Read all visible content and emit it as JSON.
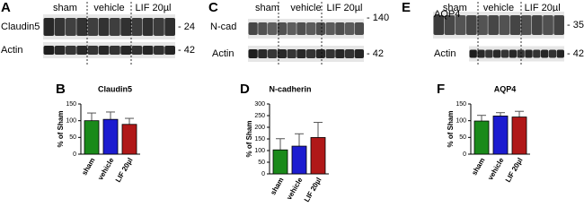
{
  "blots": [
    {
      "label": "A",
      "groups": [
        "sham",
        "vehicle",
        "LIF 20µl"
      ],
      "rows": [
        {
          "name": "Claudin5",
          "marker": "- 24"
        },
        {
          "name": "Actin",
          "marker": "- 42"
        }
      ]
    },
    {
      "label": "C",
      "groups": [
        "sham",
        "vehicle",
        "LIF 20µl"
      ],
      "rows": [
        {
          "name": "N-cad",
          "marker": "- 140"
        },
        {
          "name": "Actin",
          "marker": "- 42"
        }
      ]
    },
    {
      "label": "E",
      "groups": [
        "sham",
        "vehicle",
        "LIF 20µl"
      ],
      "rows": [
        {
          "name": "AQP4",
          "marker": "- 35"
        },
        {
          "name": "Actin",
          "marker": "- 42"
        }
      ]
    }
  ],
  "chart_data": [
    {
      "type": "bar",
      "panel": "B",
      "title": "Claudin5",
      "y_label": "% of Sham",
      "categories": [
        "sham",
        "vehicle",
        "LIF 20µl"
      ],
      "values": [
        100,
        104,
        89
      ],
      "errors": [
        23,
        22,
        18
      ],
      "colors": [
        "#1a8a1a",
        "#1c1cd0",
        "#b01818"
      ],
      "ylim": [
        0,
        150
      ],
      "yticks": [
        0,
        50,
        100,
        150
      ]
    },
    {
      "type": "bar",
      "panel": "D",
      "title": "N-cadherin",
      "y_label": "% of Sham",
      "categories": [
        "sham",
        "vehicle",
        "LIF 20µl"
      ],
      "values": [
        103,
        119,
        156
      ],
      "errors": [
        48,
        53,
        65
      ],
      "colors": [
        "#1a8a1a",
        "#1c1cd0",
        "#b01818"
      ],
      "ylim": [
        0,
        300
      ],
      "yticks": [
        0,
        50,
        100,
        150,
        200,
        250,
        300
      ]
    },
    {
      "type": "bar",
      "panel": "F",
      "title": "AQP4",
      "y_label": "% of Sham",
      "categories": [
        "sham",
        "vehicle",
        "LIF 20µl"
      ],
      "values": [
        99,
        114,
        111
      ],
      "errors": [
        17,
        10,
        17
      ],
      "colors": [
        "#1a8a1a",
        "#1c1cd0",
        "#b01818"
      ],
      "ylim": [
        0,
        150
      ],
      "yticks": [
        0,
        50,
        100,
        150
      ]
    }
  ]
}
